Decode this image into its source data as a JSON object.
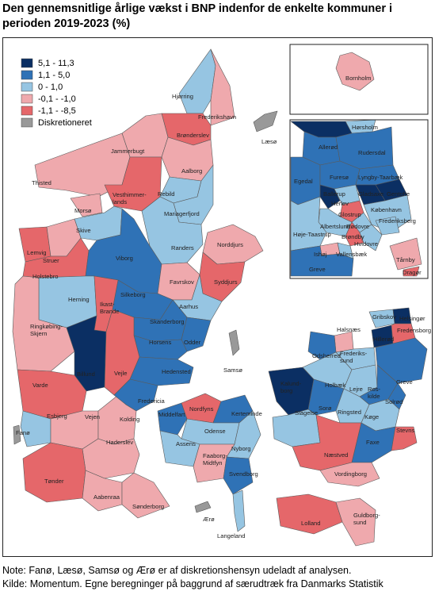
{
  "title": "Den gennemsnitlige årlige vækst i BNP indenfor de enkelte kommuner i perioden 2019-2023 (%)",
  "colors": {
    "c1": "#0b2f63",
    "c2": "#2f72b6",
    "c3": "#96c5e2",
    "c4": "#efa9ad",
    "c5": "#e5676a",
    "c6": "#999999",
    "sea": "#ffffff",
    "border": "#555555"
  },
  "legend": [
    {
      "label": "5,1 - 11,3",
      "color": "#0b2f63"
    },
    {
      "label": "1,1 - 5,0",
      "color": "#2f72b6"
    },
    {
      "label": "0 - 1,0",
      "color": "#96c5e2"
    },
    {
      "label": "-0,1 - -1,0",
      "color": "#efa9ad"
    },
    {
      "label": "-1,1 - -8,5",
      "color": "#e5676a"
    },
    {
      "label": "Diskretioneret",
      "color": "#999999"
    }
  ],
  "labels": {
    "hjorring": "Hjørring",
    "frederikshavn": "Frederikshavn",
    "laeso": "Læsø",
    "bronderslev": "Brønderslev",
    "jammerbugt": "Jammerbugt",
    "aalborg": "Aalborg",
    "thisted": "Thisted",
    "vesthimmerlands": "Vesthimmer-\nlands",
    "rebild": "Rebild",
    "mariagerfjord": "Mariagerfjord",
    "morso": "Morsø",
    "skive": "Skive",
    "randers": "Randers",
    "norddjurs": "Norddjurs",
    "lemvig": "Lemvig",
    "struer": "Struer",
    "viborg": "Viborg",
    "holstebro": "Holstebro",
    "favrskov": "Favrskov",
    "syddjurs": "Syddjurs",
    "herning": "Herning",
    "silkeborg": "Silkeborg",
    "ikast": "Ikast-\nBrande",
    "aarhus": "Aarhus",
    "ringkobing": "Ringkøbing-\nSkjern",
    "skanderborg": "Skanderborg",
    "horsens": "Horsens",
    "odder": "Odder",
    "samso": "Samsø",
    "billund": "Billund",
    "vejle": "Vejle",
    "hedensted": "Hedensted",
    "varde": "Varde",
    "fredericia": "Fredericia",
    "middelfart": "Middelfart",
    "nordfyns": "Nordfyns",
    "kerteminde": "Kerteminde",
    "esbjerg": "Esbjerg",
    "fano": "Fanø",
    "vejen": "Vejen",
    "kolding": "Kolding",
    "odense": "Odense",
    "assens": "Assens",
    "haderslev": "Haderslev",
    "faaborg": "Faaborg-\nMidtfyn",
    "nyborg": "Nyborg",
    "svendborg": "Svendborg",
    "tonder": "Tønder",
    "aabenraa": "Aabenraa",
    "sonderborg": "Sønderborg",
    "aero": "Ærø",
    "langeland": "Langeland",
    "lolland": "Lolland",
    "guldborgsund": "Guldborg-\nsund",
    "vordingborg": "Vordingborg",
    "naestved": "Næstved",
    "faxe": "Faxe",
    "stevns": "Stevns",
    "slagelse": "Slagelse",
    "sorø": "Sorø",
    "ringsted": "Ringsted",
    "koge": "Køge",
    "kalundborg": "Kalund-\nborg",
    "holbaek": "Holbæk",
    "odsherred": "Odsherred",
    "lejre": "Lejre",
    "roskilde": "Ros-\nkilde",
    "solrod": "Solrød",
    "greve_s": "Greve",
    "frederikssund": "Frederiks-\nsund",
    "halsnaes": "Halsnæs",
    "gribskov": "Gribskov",
    "helsingor_s": "Helsingør",
    "hillerod_s": "Hillerød",
    "fredensborg_s": "Fredensborg",
    "bornholm": "Bornholm",
    "horsholm": "Hørsholm",
    "allerod": "Allerød",
    "rudersdal": "Rudersdal",
    "furesø": "Furesø",
    "egedal": "Egedal",
    "lyngby": "Lyngby-Taarbæk",
    "gentofte": "Gentofte",
    "ballerup": "Ballerup",
    "herlev": "Herlev",
    "gladsaxe": "Gladsaxe",
    "glostrup": "Glostrup",
    "kobenhavn": "København",
    "albertslund": "Albertslund",
    "rodovre": "Rødovre",
    "frederiksberg": "Frederiksberg",
    "brondby": "Brøndby",
    "hvidovre": "Hvidovre",
    "hoje": "Høje-Taastrup",
    "ishoj": "Ishøj",
    "vallensbaek": "Vallensbæk",
    "greve": "Greve",
    "tarnby": "Tårnby",
    "dragor": "Dragør"
  },
  "notes": {
    "note": "Note: Fanø, Læsø, Samsø og Ærø er af diskretionshensyn udeladt af analysen.",
    "source": "Kilde: Momentum. Egne beregninger på baggrund af særudtræk fra Danmarks Statistik"
  }
}
